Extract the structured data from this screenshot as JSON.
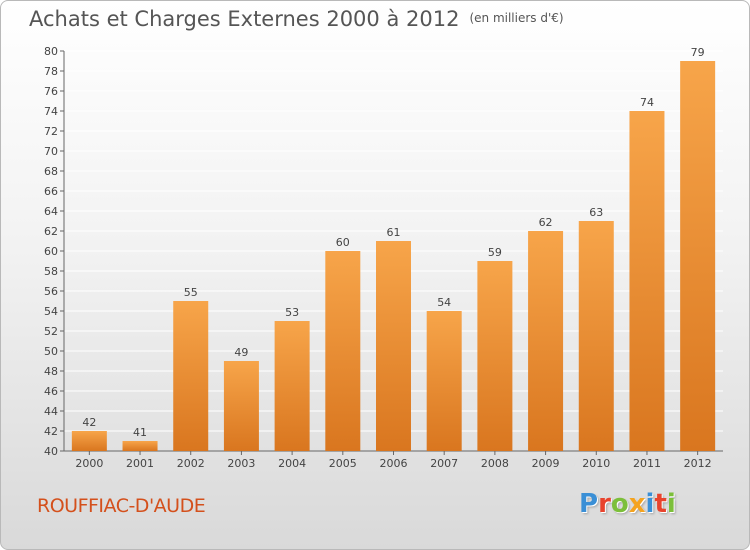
{
  "title": "Achats et Charges Externes 2000 à 2012",
  "unit": "(en milliers d'€)",
  "commune": "ROUFFIAC-D'AUDE",
  "logo": {
    "letters": [
      "P",
      "r",
      "o",
      "x",
      "i",
      "t",
      "i"
    ],
    "colors": [
      "#3a8fd6",
      "#e8432d",
      "#7cbf3a",
      "#f4a31f",
      "#3a8fd6",
      "#e8432d",
      "#7cbf3a"
    ]
  },
  "colors": {
    "bar_light": "#f7a54a",
    "bar_dark": "#d9761f",
    "title": "#555555",
    "commune": "#d4501c"
  },
  "chart_data": {
    "type": "bar",
    "categories": [
      "2000",
      "2001",
      "2002",
      "2003",
      "2004",
      "2005",
      "2006",
      "2007",
      "2008",
      "2009",
      "2010",
      "2011",
      "2012"
    ],
    "values": [
      42,
      41,
      55,
      49,
      53,
      60,
      61,
      54,
      59,
      62,
      63,
      74,
      79
    ],
    "ylim": [
      40,
      80
    ],
    "yticks": [
      40,
      42,
      44,
      46,
      48,
      50,
      52,
      54,
      56,
      58,
      60,
      62,
      64,
      66,
      68,
      70,
      72,
      74,
      76,
      78,
      80
    ],
    "grid": true
  }
}
